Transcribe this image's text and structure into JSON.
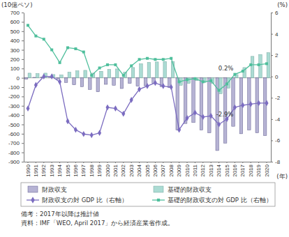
{
  "chart_data": {
    "type": "bar",
    "ylabel": "(10億ペソ)",
    "y2label": "(%)",
    "xlabel": "(年)",
    "notes": [
      "備考：2017年以降は推計値",
      "資料：IMF「WEO, April 2017」から経済産業省作成。"
    ],
    "categories": [
      "1990",
      "1991",
      "1992",
      "1993",
      "1994",
      "1995",
      "1996",
      "1997",
      "1998",
      "1999",
      "2000",
      "2001",
      "2002",
      "2003",
      "2004",
      "2005",
      "2006",
      "2007",
      "2008",
      "2009",
      "2010",
      "2011",
      "2012",
      "2013",
      "2014",
      "2015",
      "2016",
      "2017",
      "2018",
      "2019",
      "2020"
    ],
    "ylim": [
      -900,
      700
    ],
    "yticks": [
      -900,
      -800,
      -700,
      -600,
      -500,
      -400,
      -300,
      -200,
      -100,
      0,
      100,
      200,
      300,
      400,
      500,
      600,
      700
    ],
    "y2lim": [
      -8,
      6
    ],
    "y2ticks": [
      -8,
      -6,
      -4,
      -2,
      0,
      2,
      4,
      6
    ],
    "legend": "bottom",
    "series": [
      {
        "name": "財政収支",
        "type": "bar",
        "color": "#7a74b0",
        "values": [
          -15,
          5,
          10,
          5,
          -15,
          -50,
          -75,
          -95,
          -125,
          -150,
          -70,
          -80,
          -115,
          -60,
          -90,
          -85,
          -60,
          -95,
          -105,
          -560,
          -490,
          -480,
          -560,
          -590,
          -780,
          -700,
          -520,
          -600,
          -560,
          -590,
          -620
        ]
      },
      {
        "name": "基礎的財政収支",
        "type": "bar",
        "color": "#8fcfc4",
        "values": [
          50,
          45,
          50,
          35,
          30,
          60,
          75,
          80,
          50,
          70,
          90,
          95,
          60,
          110,
          150,
          165,
          170,
          175,
          175,
          -80,
          -60,
          -30,
          -50,
          -60,
          -170,
          -110,
          35,
          110,
          230,
          250,
          270
        ]
      },
      {
        "name": "財政収支の対 GDP 比（右軸）",
        "type": "line",
        "axis": "y2",
        "color": "#7b6cc0",
        "marker": "diamond",
        "values": [
          -3.0,
          -0.8,
          0.0,
          0.0,
          -0.5,
          -4.2,
          -5.0,
          -5.4,
          -5.5,
          -5.3,
          -2.9,
          -3.0,
          -3.5,
          -2.2,
          -1.2,
          -0.9,
          -0.6,
          -0.9,
          -1.0,
          -5.0,
          -3.9,
          -3.4,
          -3.8,
          -3.7,
          -4.5,
          -4.0,
          -2.9,
          -2.7,
          -2.6,
          -2.5,
          -2.5
        ]
      },
      {
        "name": "基礎的財政収支の対 GDP 比（右軸）",
        "type": "line",
        "axis": "y2",
        "color": "#4fbf9c",
        "marker": "square",
        "values": [
          4.8,
          3.8,
          3.5,
          2.5,
          1.3,
          2.7,
          2.6,
          2.3,
          0.1,
          0.8,
          1.1,
          1.1,
          0.1,
          1.0,
          1.6,
          1.7,
          1.6,
          1.6,
          1.7,
          -0.5,
          -0.3,
          -0.2,
          -0.5,
          -0.4,
          -1.3,
          -0.7,
          0.2,
          0.5,
          1.1,
          1.1,
          1.2
        ]
      }
    ],
    "annotations": [
      {
        "text": "0.2%",
        "category": "2016",
        "series": "基礎的財政収支の対 GDP 比（右軸）"
      },
      {
        "text": "-2.9%",
        "category": "2016",
        "series": "財政収支の対 GDP 比（右軸）"
      }
    ]
  }
}
